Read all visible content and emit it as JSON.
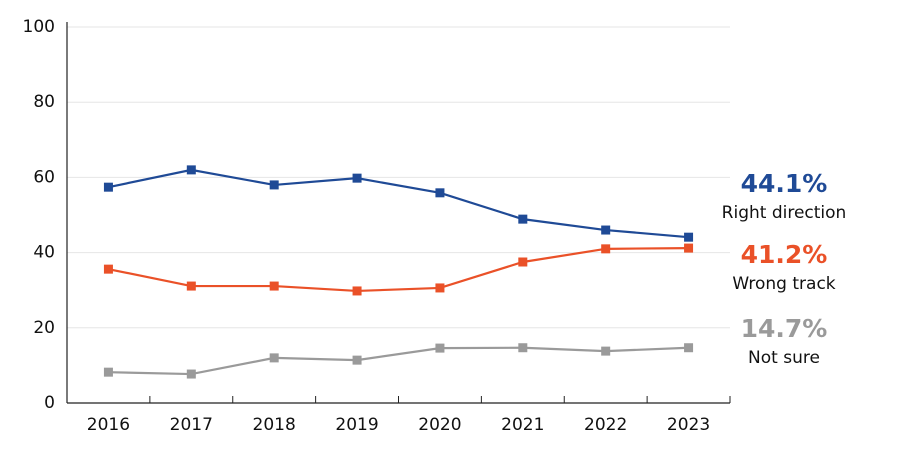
{
  "chart_data": {
    "type": "line",
    "categories": [
      "2016",
      "2017",
      "2018",
      "2019",
      "2020",
      "2021",
      "2022",
      "2023"
    ],
    "series": [
      {
        "name": "Right direction",
        "color": "#1f4a96",
        "values": [
          57.4,
          62.0,
          58.0,
          59.8,
          55.9,
          48.9,
          46.0,
          44.1
        ],
        "value_labels": [
          null,
          null,
          null,
          null,
          null,
          null,
          null,
          "44.1%"
        ]
      },
      {
        "name": "Wrong track",
        "color": "#ea5128",
        "values": [
          35.6,
          31.1,
          31.1,
          29.8,
          30.6,
          37.5,
          41.0,
          41.2
        ],
        "value_labels": [
          null,
          null,
          null,
          null,
          null,
          null,
          null,
          "41.2%"
        ]
      },
      {
        "name": "Not sure",
        "color": "#9a9a9a",
        "values": [
          8.2,
          7.7,
          12.0,
          11.4,
          14.6,
          14.7,
          13.8,
          14.7
        ],
        "value_labels": [
          null,
          null,
          null,
          null,
          null,
          null,
          null,
          "14.7%"
        ]
      }
    ],
    "ylim": [
      0,
      100
    ],
    "yticks": [
      0,
      20,
      40,
      60,
      80,
      100
    ],
    "grid": true
  }
}
